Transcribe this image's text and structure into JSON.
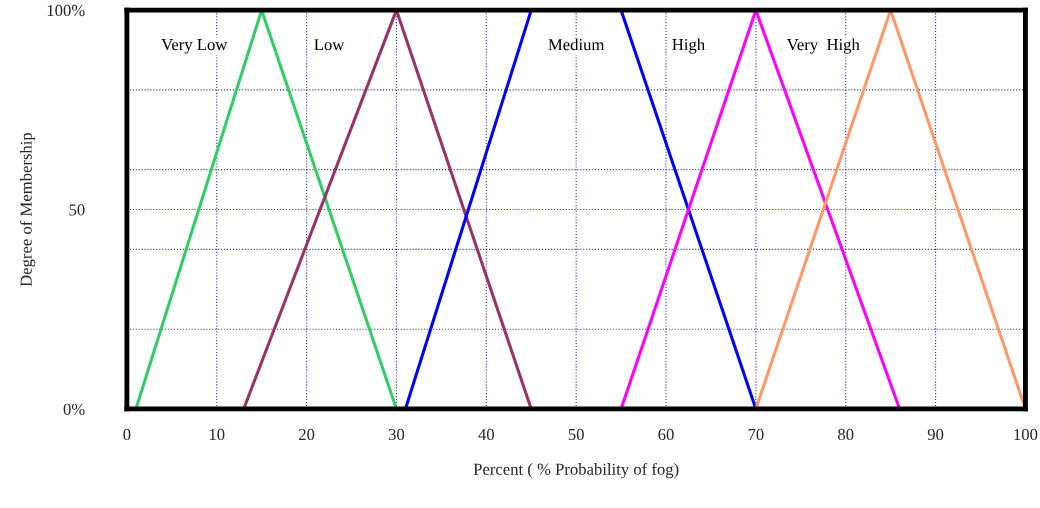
{
  "chart_data": {
    "type": "line",
    "xlabel": "Percent ( % Probability of fog)",
    "ylabel": "Degree of Membership",
    "series": [
      {
        "name": "Very Low",
        "color": "#33cc66",
        "x": [
          1,
          15,
          30
        ],
        "values": [
          0,
          100,
          0
        ]
      },
      {
        "name": "Low",
        "color": "#993366",
        "x": [
          13,
          30,
          45
        ],
        "values": [
          0,
          100,
          0
        ]
      },
      {
        "name": "Medium",
        "color": "#0000ff",
        "x": [
          31,
          45,
          55,
          70
        ],
        "values": [
          0,
          100,
          100,
          0
        ]
      },
      {
        "name": "High",
        "color": "#ff00ff",
        "x": [
          55,
          70,
          86
        ],
        "values": [
          0,
          100,
          0
        ]
      },
      {
        "name": "Very  High",
        "color": "#ff9966",
        "x": [
          70,
          85,
          100
        ],
        "values": [
          0,
          100,
          0
        ]
      }
    ],
    "xlim": [
      0,
      100
    ],
    "ylim": [
      0,
      100
    ],
    "xticks": [
      0,
      10,
      20,
      30,
      40,
      50,
      60,
      70,
      80,
      90,
      100
    ],
    "yticks": [
      {
        "value": 0,
        "label": "0%"
      },
      {
        "value": 20,
        "label": null
      },
      {
        "value": 40,
        "label": null
      },
      {
        "value": 50,
        "label": "50"
      },
      {
        "value": 60,
        "label": null
      },
      {
        "value": 80,
        "label": null
      },
      {
        "value": 100,
        "label": "100%"
      }
    ],
    "grid": true,
    "legend": false,
    "marker": "none",
    "line_style": "solid"
  }
}
